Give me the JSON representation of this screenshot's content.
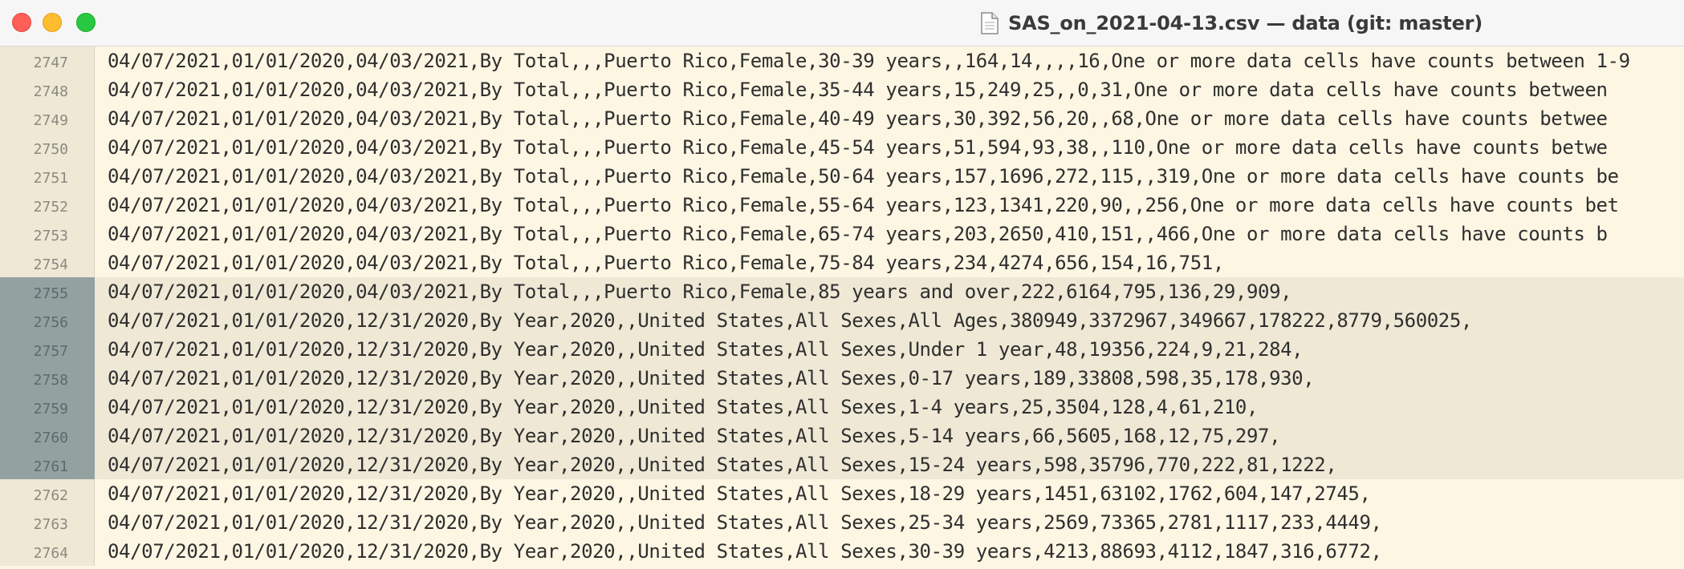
{
  "window": {
    "title": "SAS_on_2021-04-13.csv — data (git: master)"
  },
  "editor": {
    "lines": [
      {
        "number": "2747",
        "text": "04/07/2021,01/01/2020,04/03/2021,By Total,,,Puerto Rico,Female,30-39 years,,164,14,,,,16,One or more data cells have counts between 1-9",
        "selected": false
      },
      {
        "number": "2748",
        "text": "04/07/2021,01/01/2020,04/03/2021,By Total,,,Puerto Rico,Female,35-44 years,15,249,25,,0,31,One or more data cells have counts between",
        "selected": false
      },
      {
        "number": "2749",
        "text": "04/07/2021,01/01/2020,04/03/2021,By Total,,,Puerto Rico,Female,40-49 years,30,392,56,20,,68,One or more data cells have counts betwee",
        "selected": false
      },
      {
        "number": "2750",
        "text": "04/07/2021,01/01/2020,04/03/2021,By Total,,,Puerto Rico,Female,45-54 years,51,594,93,38,,110,One or more data cells have counts betwe",
        "selected": false
      },
      {
        "number": "2751",
        "text": "04/07/2021,01/01/2020,04/03/2021,By Total,,,Puerto Rico,Female,50-64 years,157,1696,272,115,,319,One or more data cells have counts be",
        "selected": false
      },
      {
        "number": "2752",
        "text": "04/07/2021,01/01/2020,04/03/2021,By Total,,,Puerto Rico,Female,55-64 years,123,1341,220,90,,256,One or more data cells have counts bet",
        "selected": false
      },
      {
        "number": "2753",
        "text": "04/07/2021,01/01/2020,04/03/2021,By Total,,,Puerto Rico,Female,65-74 years,203,2650,410,151,,466,One or more data cells have counts b",
        "selected": false
      },
      {
        "number": "2754",
        "text": "04/07/2021,01/01/2020,04/03/2021,By Total,,,Puerto Rico,Female,75-84 years,234,4274,656,154,16,751,",
        "selected": false
      },
      {
        "number": "2755",
        "text": "04/07/2021,01/01/2020,04/03/2021,By Total,,,Puerto Rico,Female,85 years and over,222,6164,795,136,29,909,",
        "selected": true
      },
      {
        "number": "2756",
        "text": "04/07/2021,01/01/2020,12/31/2020,By Year,2020,,United States,All Sexes,All Ages,380949,3372967,349667,178222,8779,560025,",
        "selected": true
      },
      {
        "number": "2757",
        "text": "04/07/2021,01/01/2020,12/31/2020,By Year,2020,,United States,All Sexes,Under 1 year,48,19356,224,9,21,284,",
        "selected": true
      },
      {
        "number": "2758",
        "text": "04/07/2021,01/01/2020,12/31/2020,By Year,2020,,United States,All Sexes,0-17 years,189,33808,598,35,178,930,",
        "selected": true
      },
      {
        "number": "2759",
        "text": "04/07/2021,01/01/2020,12/31/2020,By Year,2020,,United States,All Sexes,1-4 years,25,3504,128,4,61,210,",
        "selected": true
      },
      {
        "number": "2760",
        "text": "04/07/2021,01/01/2020,12/31/2020,By Year,2020,,United States,All Sexes,5-14 years,66,5605,168,12,75,297,",
        "selected": true
      },
      {
        "number": "2761",
        "text": "04/07/2021,01/01/2020,12/31/2020,By Year,2020,,United States,All Sexes,15-24 years,598,35796,770,222,81,1222,",
        "selected": true
      },
      {
        "number": "2762",
        "text": "04/07/2021,01/01/2020,12/31/2020,By Year,2020,,United States,All Sexes,18-29 years,1451,63102,1762,604,147,2745,",
        "selected": false
      },
      {
        "number": "2763",
        "text": "04/07/2021,01/01/2020,12/31/2020,By Year,2020,,United States,All Sexes,25-34 years,2569,73365,2781,1117,233,4449,",
        "selected": false
      },
      {
        "number": "2764",
        "text": "04/07/2021,01/01/2020,12/31/2020,By Year,2020,,United States,All Sexes,30-39 years,4213,88693,4112,1847,316,6772,",
        "selected": false
      }
    ]
  },
  "icons": {
    "document": "document-icon",
    "close": "close-icon",
    "minimize": "minimize-icon",
    "zoom": "zoom-icon"
  },
  "colors": {
    "background": "#fdf6e3",
    "gutter": "#eee8d5",
    "selection_gutter": "#93a1a1",
    "selection_line": "#eee8d5",
    "close": "#ff5f57",
    "minimize": "#febc2e",
    "zoom": "#28c840"
  }
}
